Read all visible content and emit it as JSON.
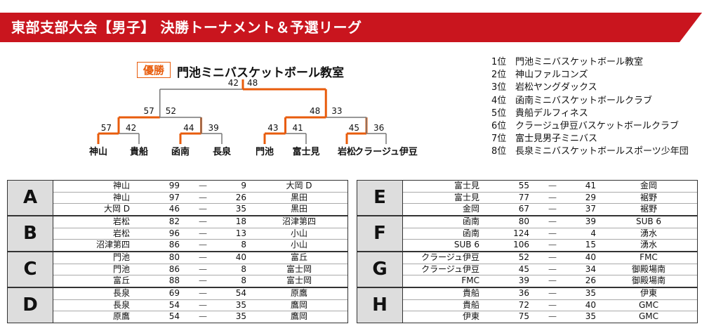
{
  "title": "東部支部大会【男子】 決勝トーナメント＆予選リーグ",
  "winner": {
    "badge": "優勝",
    "name": "門池ミニバスケットボール教室"
  },
  "tournament": {
    "teams": [
      "神山",
      "貴船",
      "函南",
      "長泉",
      "門池",
      "富士見",
      "岩松",
      "クラージュ伊豆"
    ],
    "round1_scores": [
      [
        "57",
        "42"
      ],
      [
        "44",
        "39"
      ],
      [
        "43",
        "41"
      ],
      [
        "45",
        "36"
      ]
    ],
    "semi_scores": [
      [
        "57",
        "52"
      ],
      [
        "48",
        "33"
      ]
    ],
    "final_scores": [
      "42",
      "48"
    ]
  },
  "ranking": [
    {
      "pos": "1位",
      "team": "門池ミニバスケットボール教室"
    },
    {
      "pos": "2位",
      "team": "神山ファルコンズ"
    },
    {
      "pos": "3位",
      "team": "岩松ヤングダックス"
    },
    {
      "pos": "4位",
      "team": "函南ミニバスケットボールクラブ"
    },
    {
      "pos": "5位",
      "team": "貴船デルフィネス"
    },
    {
      "pos": "6位",
      "team": "クラージュ伊豆バスケットボールクラブ"
    },
    {
      "pos": "7位",
      "team": "富士見男子ミニバス"
    },
    {
      "pos": "8位",
      "team": "長泉ミニバスケットボールスポーツ少年団"
    }
  ],
  "dash": "—",
  "leagues": [
    {
      "letter": "A",
      "matches": [
        [
          "神山",
          "99",
          "9",
          "大岡 D"
        ],
        [
          "神山",
          "97",
          "26",
          "黒田"
        ],
        [
          "大岡 D",
          "46",
          "35",
          "黒田"
        ]
      ]
    },
    {
      "letter": "B",
      "matches": [
        [
          "岩松",
          "82",
          "18",
          "沼津第四"
        ],
        [
          "岩松",
          "96",
          "13",
          "小山"
        ],
        [
          "沼津第四",
          "86",
          "8",
          "小山"
        ]
      ]
    },
    {
      "letter": "C",
      "matches": [
        [
          "門池",
          "80",
          "40",
          "富丘"
        ],
        [
          "門池",
          "86",
          "8",
          "富士岡"
        ],
        [
          "富丘",
          "88",
          "8",
          "富士岡"
        ]
      ]
    },
    {
      "letter": "D",
      "matches": [
        [
          "長泉",
          "69",
          "54",
          "原鷹"
        ],
        [
          "長泉",
          "54",
          "35",
          "鷹岡"
        ],
        [
          "原鷹",
          "54",
          "35",
          "鷹岡"
        ]
      ]
    },
    {
      "letter": "E",
      "matches": [
        [
          "富士見",
          "55",
          "41",
          "金岡"
        ],
        [
          "富士見",
          "77",
          "29",
          "裾野"
        ],
        [
          "金岡",
          "67",
          "37",
          "裾野"
        ]
      ]
    },
    {
      "letter": "F",
      "matches": [
        [
          "函南",
          "80",
          "39",
          "SUB 6"
        ],
        [
          "函南",
          "124",
          "4",
          "湧水"
        ],
        [
          "SUB 6",
          "106",
          "15",
          "湧水"
        ]
      ]
    },
    {
      "letter": "G",
      "matches": [
        [
          "クラージュ伊豆",
          "52",
          "40",
          "FMC"
        ],
        [
          "クラージュ伊豆",
          "45",
          "34",
          "御殿場南"
        ],
        [
          "FMC",
          "39",
          "26",
          "御殿場南"
        ]
      ]
    },
    {
      "letter": "H",
      "matches": [
        [
          "貴船",
          "36",
          "35",
          "伊東"
        ],
        [
          "貴船",
          "72",
          "40",
          "GMC"
        ],
        [
          "伊東",
          "75",
          "35",
          "GMC"
        ]
      ]
    }
  ]
}
